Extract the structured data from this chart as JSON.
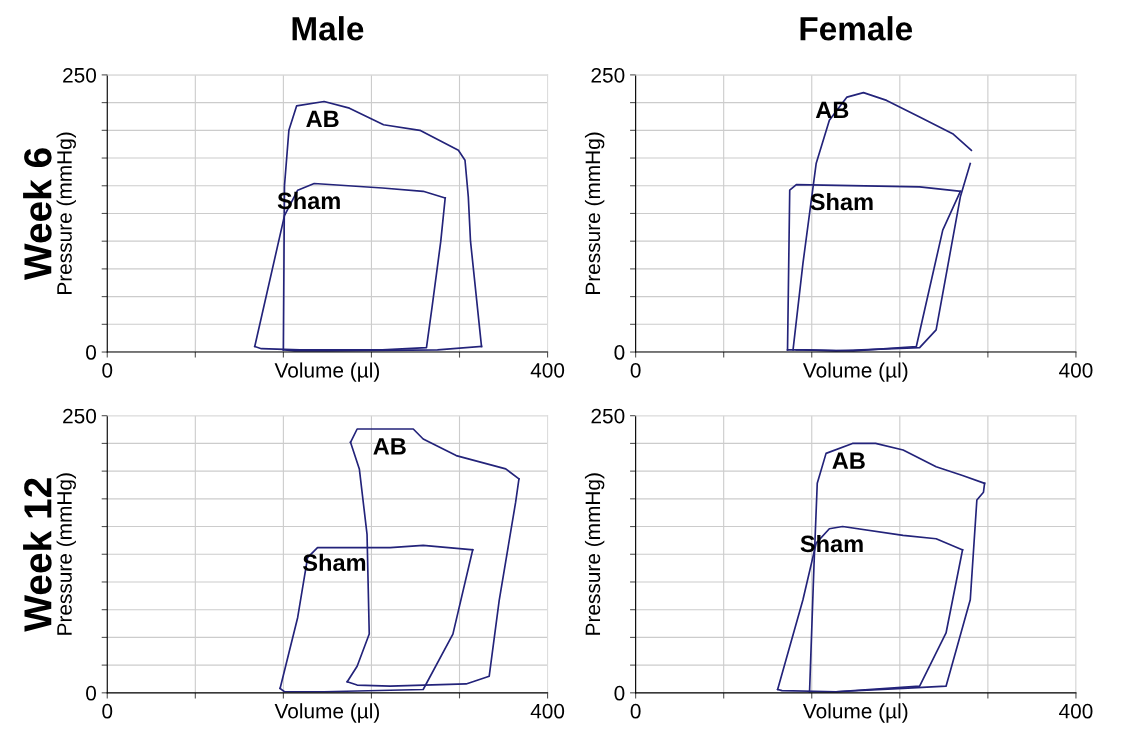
{
  "chart_data": [
    {
      "type": "line",
      "title": "Male",
      "xlabel": "Volume (µl)",
      "ylabel": "Pressure (mmHg)",
      "xlim": [
        0,
        400
      ],
      "ylim": [
        0,
        250
      ],
      "grid": true,
      "xticks": [
        0,
        {
          "value": 80,
          "label": null
        },
        {
          "value": 160,
          "label": null
        },
        {
          "value": 240,
          "label": null
        },
        {
          "value": 320,
          "label": null
        },
        400
      ],
      "yticks": [
        0,
        {
          "value": 25,
          "label": null
        },
        {
          "value": 50,
          "label": null
        },
        {
          "value": 75,
          "label": null
        },
        {
          "value": 100,
          "label": null
        },
        {
          "value": 125,
          "label": null
        },
        {
          "value": 150,
          "label": null
        },
        {
          "value": 175,
          "label": null
        },
        {
          "value": 200,
          "label": null
        },
        {
          "value": 225,
          "label": null
        },
        250
      ],
      "series": [
        {
          "name": "AB",
          "color": "#23237a",
          "x": [
            160,
            161,
            165,
            172,
            197,
            220,
            251,
            284,
            319,
            325,
            328,
            330,
            340
          ],
          "values": [
            2,
            150,
            200,
            222,
            226,
            220,
            205,
            200,
            182,
            173,
            140,
            100,
            5
          ]
        },
        {
          "color": "#23237a",
          "x": [
            340,
            300,
            200,
            170,
            160
          ],
          "values": [
            5,
            2,
            1,
            1,
            2
          ]
        },
        {
          "name": "Sham",
          "color": "#23237a",
          "x": [
            134,
            161,
            173,
            188,
            250,
            287,
            307
          ],
          "values": [
            5,
            123,
            146,
            152,
            148,
            145,
            139
          ]
        },
        {
          "color": "#23237a",
          "x": [
            307,
            303,
            295,
            290,
            250,
            175,
            140,
            134
          ],
          "values": [
            139,
            100,
            40,
            4,
            2,
            2,
            3,
            5
          ]
        }
      ],
      "annotations": [
        "Week 6"
      ]
    },
    {
      "type": "line",
      "title": "Female",
      "xlabel": "Volume (µl)",
      "ylabel": "Pressure (mmHg)",
      "xlim": [
        0,
        400
      ],
      "ylim": [
        0,
        250
      ],
      "grid": true,
      "xticks": [
        0,
        {
          "value": 80,
          "label": null
        },
        {
          "value": 160,
          "label": null
        },
        {
          "value": 240,
          "label": null
        },
        {
          "value": 320,
          "label": null
        },
        400
      ],
      "yticks": [
        0,
        {
          "value": 25,
          "label": null
        },
        {
          "value": 50,
          "label": null
        },
        {
          "value": 75,
          "label": null
        },
        {
          "value": 100,
          "label": null
        },
        {
          "value": 125,
          "label": null
        },
        {
          "value": 150,
          "label": null
        },
        {
          "value": 175,
          "label": null
        },
        {
          "value": 200,
          "label": null
        },
        {
          "value": 225,
          "label": null
        },
        250
      ],
      "series": [
        {
          "name": "AB",
          "color": "#23237a",
          "x": [
            143,
            152,
            164,
            176,
            192,
            207,
            228,
            258,
            288,
            305
          ],
          "values": [
            2,
            80,
            170,
            209,
            230,
            234,
            227,
            212,
            197,
            182
          ]
        },
        {
          "color": "#23237a",
          "x": [
            304,
            295,
            273,
            258,
            182,
            152,
            146
          ],
          "values": [
            170,
            140,
            20,
            4,
            1,
            2,
            2
          ]
        },
        {
          "name": "Sham",
          "color": "#23237a",
          "x": [
            138,
            140,
            146,
            258,
            295
          ],
          "values": [
            2,
            146,
            151,
            149,
            145
          ]
        },
        {
          "color": "#23237a",
          "x": [
            295,
            279,
            255,
            198,
            152,
            138
          ],
          "values": [
            145,
            110,
            5,
            1,
            2,
            2
          ]
        }
      ]
    },
    {
      "type": "line",
      "xlabel": "Volume (µl)",
      "ylabel": "Pressure (mmHg)",
      "xlim": [
        0,
        400
      ],
      "ylim": [
        0,
        250
      ],
      "grid": true,
      "xticks": [
        0,
        {
          "value": 80,
          "label": null
        },
        {
          "value": 160,
          "label": null
        },
        {
          "value": 240,
          "label": null
        },
        {
          "value": 320,
          "label": null
        },
        400
      ],
      "yticks": [
        0,
        {
          "value": 25,
          "label": null
        },
        {
          "value": 50,
          "label": null
        },
        {
          "value": 75,
          "label": null
        },
        {
          "value": 100,
          "label": null
        },
        {
          "value": 125,
          "label": null
        },
        {
          "value": 150,
          "label": null
        },
        {
          "value": 175,
          "label": null
        },
        {
          "value": 200,
          "label": null
        },
        {
          "value": 225,
          "label": null
        },
        250
      ],
      "series": [
        {
          "color": "#23237a",
          "x": [
            218,
            227,
            238,
            236,
            229,
            221
          ],
          "values": [
            10,
            24,
            53,
            143,
            202,
            226
          ]
        },
        {
          "name": "AB",
          "color": "#23237a",
          "x": [
            221,
            227,
            278,
            287,
            317,
            362,
            374
          ],
          "values": [
            226,
            238,
            238,
            229,
            214,
            202,
            193
          ]
        },
        {
          "color": "#23237a",
          "x": [
            374,
            371,
            356,
            347,
            326,
            257,
            227,
            218
          ],
          "values": [
            193,
            172,
            83,
            15,
            8,
            6,
            7,
            10
          ]
        },
        {
          "name": "Sham",
          "color": "#23237a",
          "x": [
            157,
            173,
            182,
            191,
            257,
            287,
            332
          ],
          "values": [
            4,
            68,
            122,
            131,
            131,
            133,
            129
          ]
        },
        {
          "color": "#23237a",
          "x": [
            332,
            314,
            287,
            197,
            161,
            157
          ],
          "values": [
            129,
            53,
            3,
            1,
            1,
            4
          ]
        }
      ],
      "annotations": [
        "Week 12"
      ]
    },
    {
      "type": "line",
      "xlabel": "Volume (µl)",
      "ylabel": "Pressure (mmHg)",
      "xlim": [
        0,
        400
      ],
      "ylim": [
        0,
        250
      ],
      "grid": true,
      "xticks": [
        0,
        {
          "value": 80,
          "label": null
        },
        {
          "value": 160,
          "label": null
        },
        {
          "value": 240,
          "label": null
        },
        {
          "value": 320,
          "label": null
        },
        400
      ],
      "yticks": [
        0,
        {
          "value": 25,
          "label": null
        },
        {
          "value": 50,
          "label": null
        },
        {
          "value": 75,
          "label": null
        },
        {
          "value": 100,
          "label": null
        },
        {
          "value": 125,
          "label": null
        },
        {
          "value": 150,
          "label": null
        },
        {
          "value": 175,
          "label": null
        },
        {
          "value": 200,
          "label": null
        },
        {
          "value": 225,
          "label": null
        },
        250
      ],
      "series": [
        {
          "name": "AB",
          "color": "#23237a",
          "x": [
            158,
            162,
            165,
            173,
            197,
            218,
            243,
            273,
            297,
            317
          ],
          "values": [
            1,
            114,
            189,
            216,
            225,
            225,
            219,
            204,
            196,
            189
          ]
        },
        {
          "color": "#23237a",
          "x": [
            317,
            316,
            310,
            304,
            282,
            243,
            182,
            158
          ],
          "values": [
            189,
            181,
            174,
            84,
            6,
            4,
            1,
            1
          ]
        },
        {
          "name": "Sham",
          "color": "#23237a",
          "x": [
            129,
            152,
            164,
            176,
            188,
            243,
            273,
            297
          ],
          "values": [
            3,
            84,
            135,
            148,
            150,
            142,
            139,
            129
          ]
        },
        {
          "color": "#23237a",
          "x": [
            297,
            282,
            258,
            182,
            133,
            129
          ],
          "values": [
            129,
            54,
            6,
            1,
            2,
            3
          ]
        }
      ]
    }
  ]
}
